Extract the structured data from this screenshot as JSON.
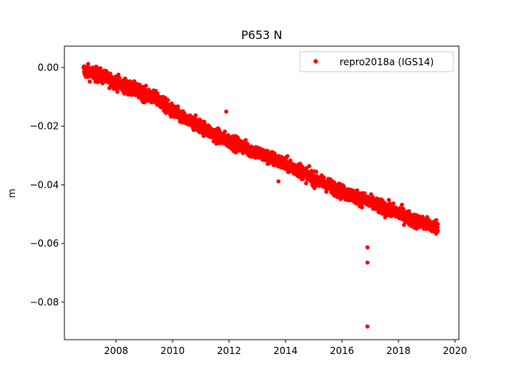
{
  "chart_data": {
    "type": "scatter",
    "title": "P653 N",
    "xlabel": "",
    "ylabel": "m",
    "xlim": [
      2006.17,
      2020.14
    ],
    "ylim": [
      -0.0928,
      0.0073
    ],
    "xticks": [
      2008,
      2010,
      2012,
      2014,
      2016,
      2018,
      2020
    ],
    "xtick_labels": [
      "2008",
      "2010",
      "2012",
      "2014",
      "2016",
      "2018",
      "2020"
    ],
    "yticks": [
      0.0,
      -0.02,
      -0.04,
      -0.06,
      -0.08
    ],
    "ytick_labels": [
      "0.00",
      "−0.02",
      "−0.04",
      "−0.06",
      "−0.08"
    ],
    "grid": false,
    "legend": {
      "placement": "top-right",
      "entries": [
        "repro2018a (IGS14)"
      ]
    },
    "series": [
      {
        "name": "repro2018a (IGS14)",
        "color": "#ff0000",
        "marker": "circle",
        "noise_std": 0.0013,
        "trend_x": [
          2006.85,
          2007.5,
          2008.0,
          2008.5,
          2009.0,
          2009.5,
          2010.0,
          2010.5,
          2011.0,
          2011.5,
          2012.0,
          2012.5,
          2013.0,
          2013.5,
          2014.0,
          2014.5,
          2015.0,
          2015.5,
          2016.0,
          2016.5,
          2017.0,
          2017.5,
          2018.0,
          2018.5,
          2019.0,
          2019.4
        ],
        "trend_y": [
          -0.001,
          -0.003,
          -0.005,
          -0.007,
          -0.009,
          -0.011,
          -0.015,
          -0.018,
          -0.02,
          -0.023,
          -0.025,
          -0.027,
          -0.029,
          -0.031,
          -0.033,
          -0.035,
          -0.038,
          -0.04,
          -0.0425,
          -0.044,
          -0.046,
          -0.048,
          -0.0495,
          -0.052,
          -0.0535,
          -0.0545
        ],
        "outliers": [
          {
            "x": 2011.9,
            "y": -0.015
          },
          {
            "x": 2013.75,
            "y": -0.0388
          },
          {
            "x": 2016.9,
            "y": -0.0613
          },
          {
            "x": 2016.9,
            "y": -0.0665
          },
          {
            "x": 2016.9,
            "y": -0.0883
          }
        ]
      }
    ]
  }
}
